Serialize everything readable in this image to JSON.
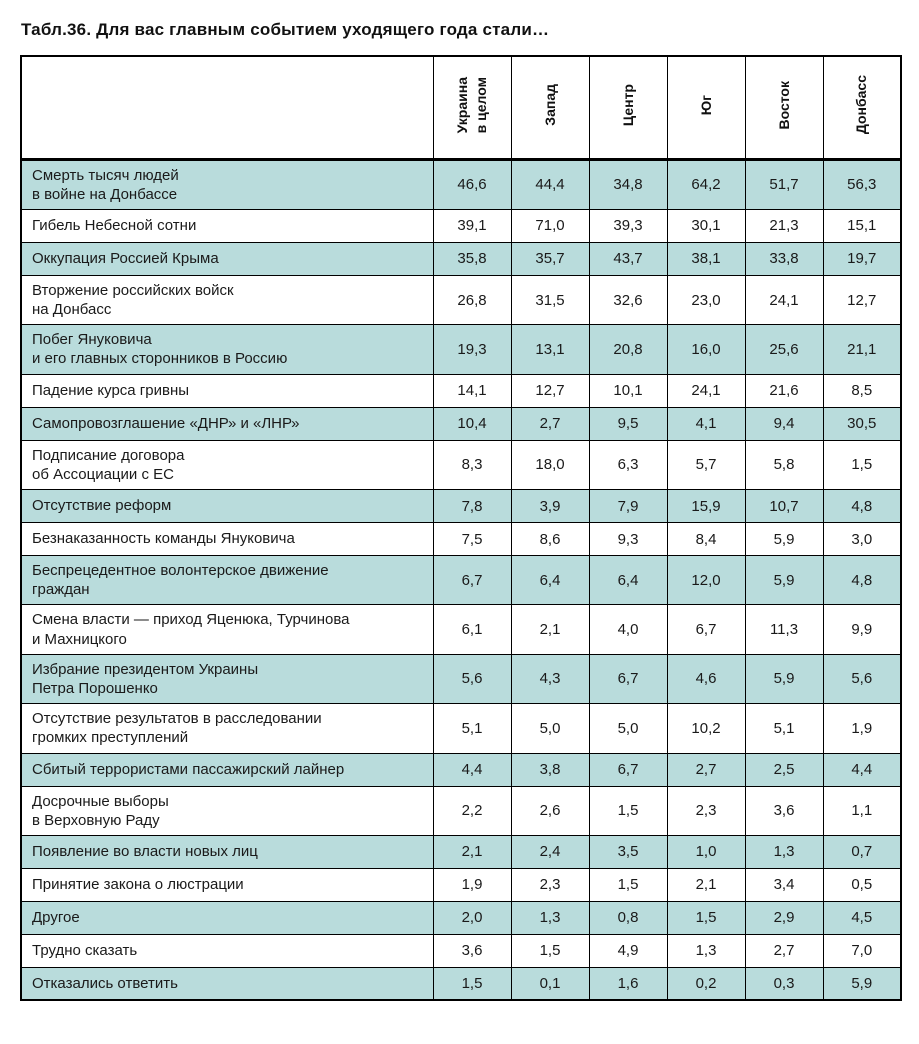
{
  "colors": {
    "shaded_row": "#b9dcdc",
    "border": "#000000",
    "text": "#1a1a1a"
  },
  "chart_data": {
    "type": "table",
    "title": "Табл.36. Для вас главным событием уходящего года стали…",
    "columns": [
      "Украина\nв целом",
      "Запад",
      "Центр",
      "Юг",
      "Восток",
      "Донбасс"
    ],
    "decimal_separator": ",",
    "rows": [
      {
        "label": "Смерть тысяч людей\nв войне на Донбассе",
        "values": [
          46.6,
          44.4,
          34.8,
          64.2,
          51.7,
          56.3
        ]
      },
      {
        "label": "Гибель Небесной сотни",
        "values": [
          39.1,
          71.0,
          39.3,
          30.1,
          21.3,
          15.1
        ]
      },
      {
        "label": "Оккупация Россией Крыма",
        "values": [
          35.8,
          35.7,
          43.7,
          38.1,
          33.8,
          19.7
        ]
      },
      {
        "label": "Вторжение российских войск\nна Донбасс",
        "values": [
          26.8,
          31.5,
          32.6,
          23.0,
          24.1,
          12.7
        ]
      },
      {
        "label": "Побег Януковича\nи его главных сторонников в Россию",
        "values": [
          19.3,
          13.1,
          20.8,
          16.0,
          25.6,
          21.1
        ]
      },
      {
        "label": "Падение курса гривны",
        "values": [
          14.1,
          12.7,
          10.1,
          24.1,
          21.6,
          8.5
        ]
      },
      {
        "label": "Самопровозглашение «ДНР» и «ЛНР»",
        "values": [
          10.4,
          2.7,
          9.5,
          4.1,
          9.4,
          30.5
        ]
      },
      {
        "label": "Подписание договора\nоб Ассоциации с ЕС",
        "values": [
          8.3,
          18.0,
          6.3,
          5.7,
          5.8,
          1.5
        ]
      },
      {
        "label": "Отсутствие реформ",
        "values": [
          7.8,
          3.9,
          7.9,
          15.9,
          10.7,
          4.8
        ]
      },
      {
        "label": "Безнаказанность команды Януковича",
        "values": [
          7.5,
          8.6,
          9.3,
          8.4,
          5.9,
          3.0
        ]
      },
      {
        "label": "Беспрецедентное волонтерское движение\nграждан",
        "values": [
          6.7,
          6.4,
          6.4,
          12.0,
          5.9,
          4.8
        ]
      },
      {
        "label": "Смена власти — приход Яценюка, Турчинова\nи Махницкого",
        "values": [
          6.1,
          2.1,
          4.0,
          6.7,
          11.3,
          9.9
        ]
      },
      {
        "label": "Избрание президентом Украины\nПетра Порошенко",
        "values": [
          5.6,
          4.3,
          6.7,
          4.6,
          5.9,
          5.6
        ]
      },
      {
        "label": "Отсутствие результатов в расследовании\nгромких преступлений",
        "values": [
          5.1,
          5.0,
          5.0,
          10.2,
          5.1,
          1.9
        ]
      },
      {
        "label": "Сбитый террористами пассажирский лайнер",
        "values": [
          4.4,
          3.8,
          6.7,
          2.7,
          2.5,
          4.4
        ]
      },
      {
        "label": "Досрочные выборы\nв Верховную Раду",
        "values": [
          2.2,
          2.6,
          1.5,
          2.3,
          3.6,
          1.1
        ]
      },
      {
        "label": "Появление во власти новых лиц",
        "values": [
          2.1,
          2.4,
          3.5,
          1.0,
          1.3,
          0.7
        ]
      },
      {
        "label": "Принятие закона о люстрации",
        "values": [
          1.9,
          2.3,
          1.5,
          2.1,
          3.4,
          0.5
        ]
      },
      {
        "label": "Другое",
        "values": [
          2.0,
          1.3,
          0.8,
          1.5,
          2.9,
          4.5
        ]
      },
      {
        "label": "Трудно сказать",
        "values": [
          3.6,
          1.5,
          4.9,
          1.3,
          2.7,
          7.0
        ]
      },
      {
        "label": "Отказались ответить",
        "values": [
          1.5,
          0.1,
          1.6,
          0.2,
          0.3,
          5.9
        ]
      }
    ]
  }
}
